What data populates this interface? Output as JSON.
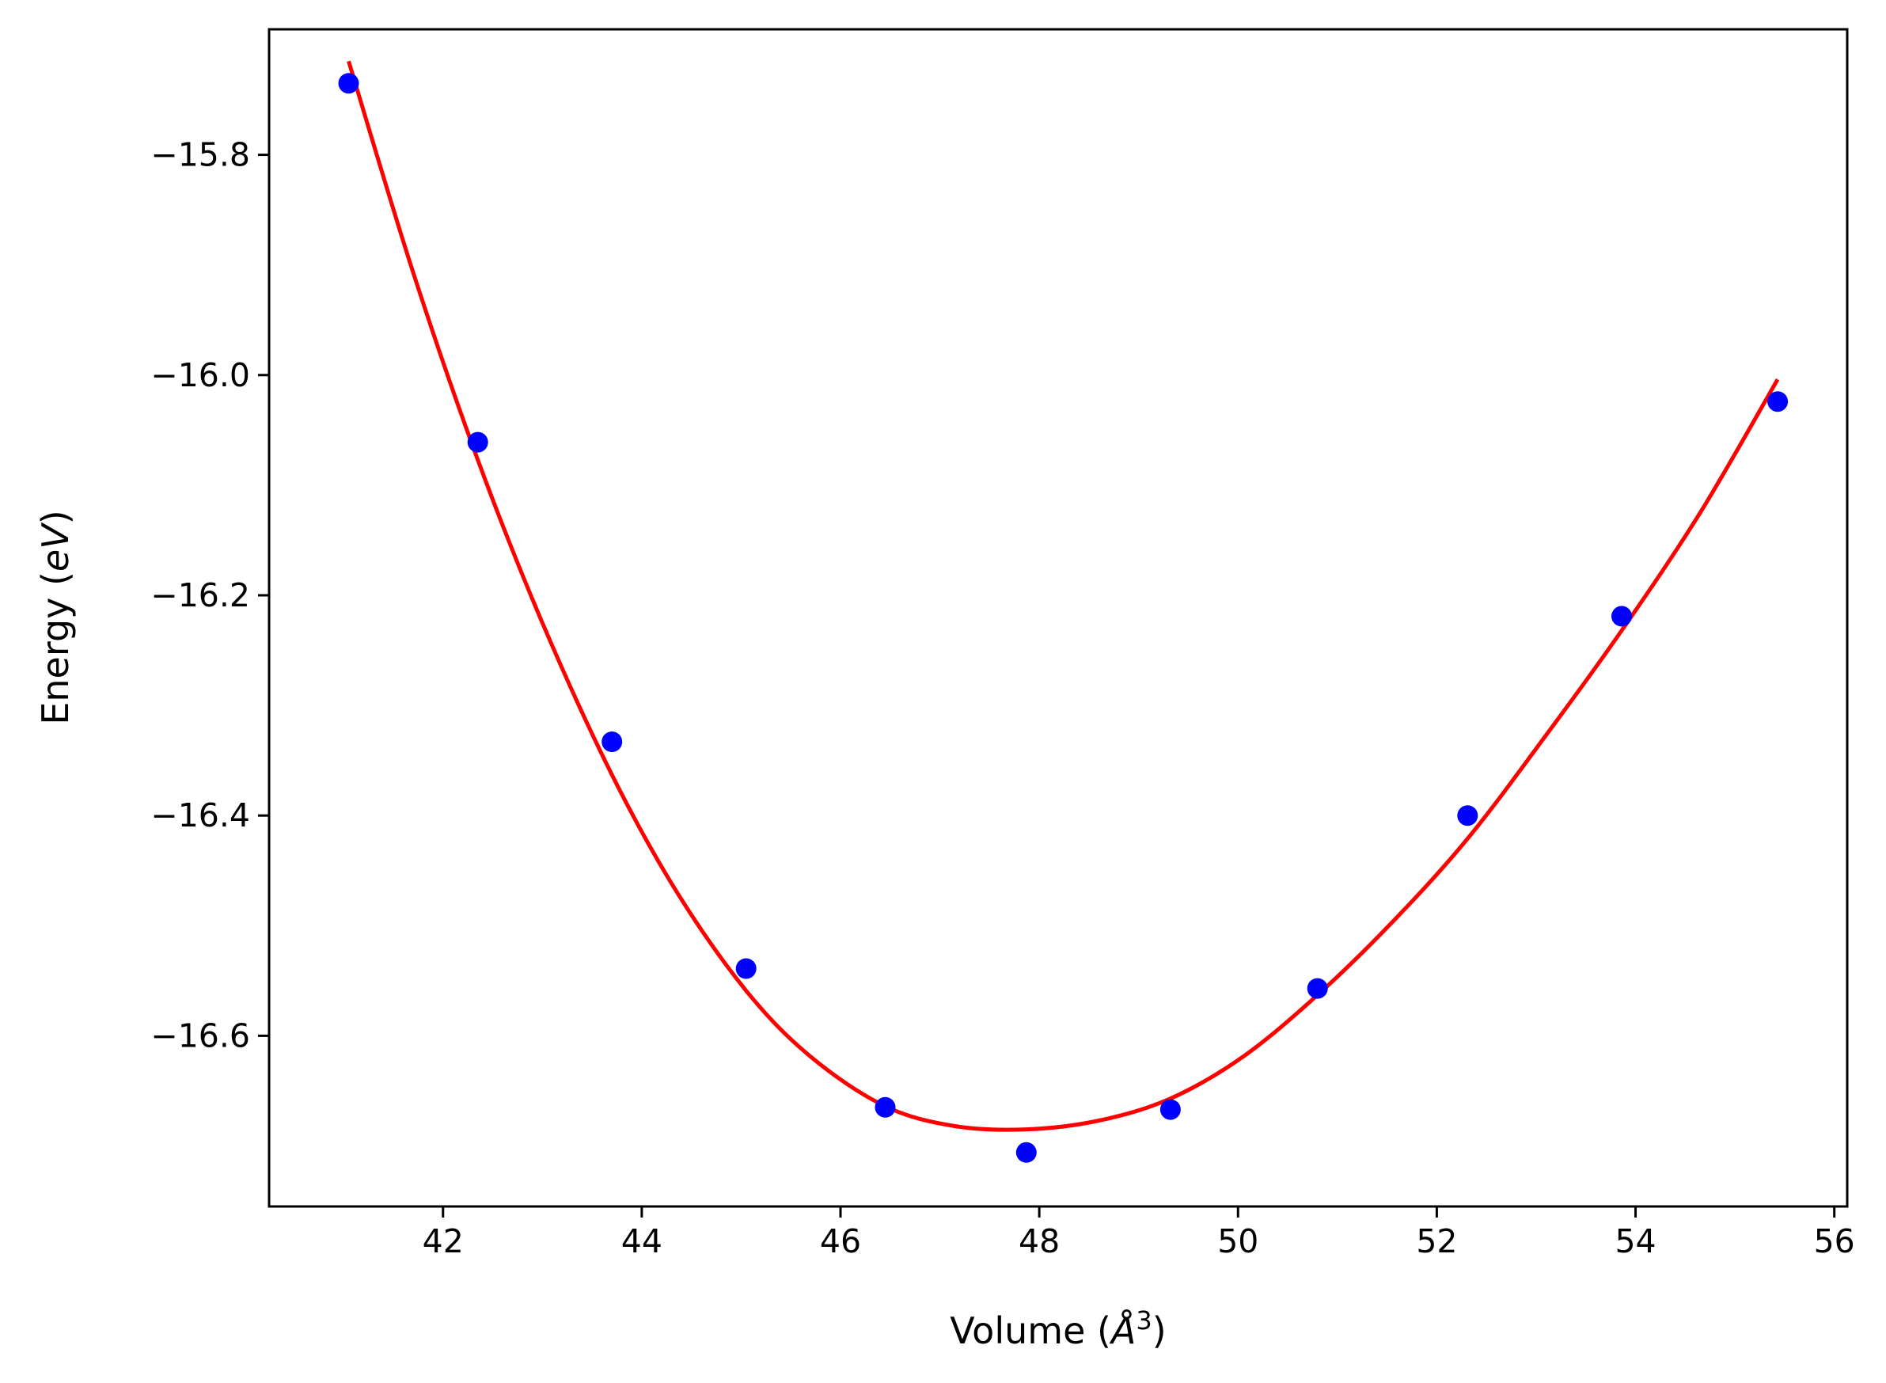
{
  "chart_data": {
    "type": "scatter",
    "title": "",
    "xlabel": {
      "main": "Volume (",
      "italic": "Å",
      "sup": "3",
      "close": ")"
    },
    "ylabel": {
      "main": "Energy (",
      "italic": "eV",
      "close": ")"
    },
    "xlim": [
      40.25,
      56.13
    ],
    "ylim": [
      -16.755,
      -15.686
    ],
    "xticks": [
      42,
      44,
      46,
      48,
      50,
      52,
      54,
      56
    ],
    "xtick_labels": [
      "42",
      "44",
      "46",
      "48",
      "50",
      "52",
      "54",
      "56"
    ],
    "yticks": [
      -15.8,
      -16.0,
      -16.2,
      -16.4,
      -16.6
    ],
    "ytick_labels": [
      "−15.8",
      "−16.0",
      "−16.2",
      "−16.4",
      "−16.6"
    ],
    "grid": false,
    "legend": "none",
    "series": [
      {
        "kind": "points",
        "color": "#0000ff",
        "x": [
          41.05,
          42.35,
          43.7,
          45.05,
          46.45,
          47.87,
          49.32,
          50.8,
          52.31,
          53.86,
          55.43
        ],
        "y": [
          -15.735,
          -16.061,
          -16.333,
          -16.539,
          -16.665,
          -16.706,
          -16.667,
          -16.557,
          -16.4,
          -16.219,
          -16.024
        ]
      },
      {
        "kind": "fit-curve",
        "color": "#ff0000",
        "x": [
          41.05,
          41.7,
          42.35,
          43.0,
          43.7,
          44.35,
          45.05,
          45.7,
          46.45,
          47.15,
          47.87,
          48.6,
          49.32,
          50.05,
          50.8,
          51.55,
          52.31,
          53.1,
          53.86,
          54.65,
          55.43
        ],
        "y": [
          -15.715,
          -15.907,
          -16.077,
          -16.225,
          -16.363,
          -16.469,
          -16.559,
          -16.619,
          -16.664,
          -16.682,
          -16.685,
          -16.677,
          -16.657,
          -16.619,
          -16.563,
          -16.497,
          -16.421,
          -16.327,
          -16.232,
          -16.125,
          -16.004
        ]
      }
    ]
  }
}
